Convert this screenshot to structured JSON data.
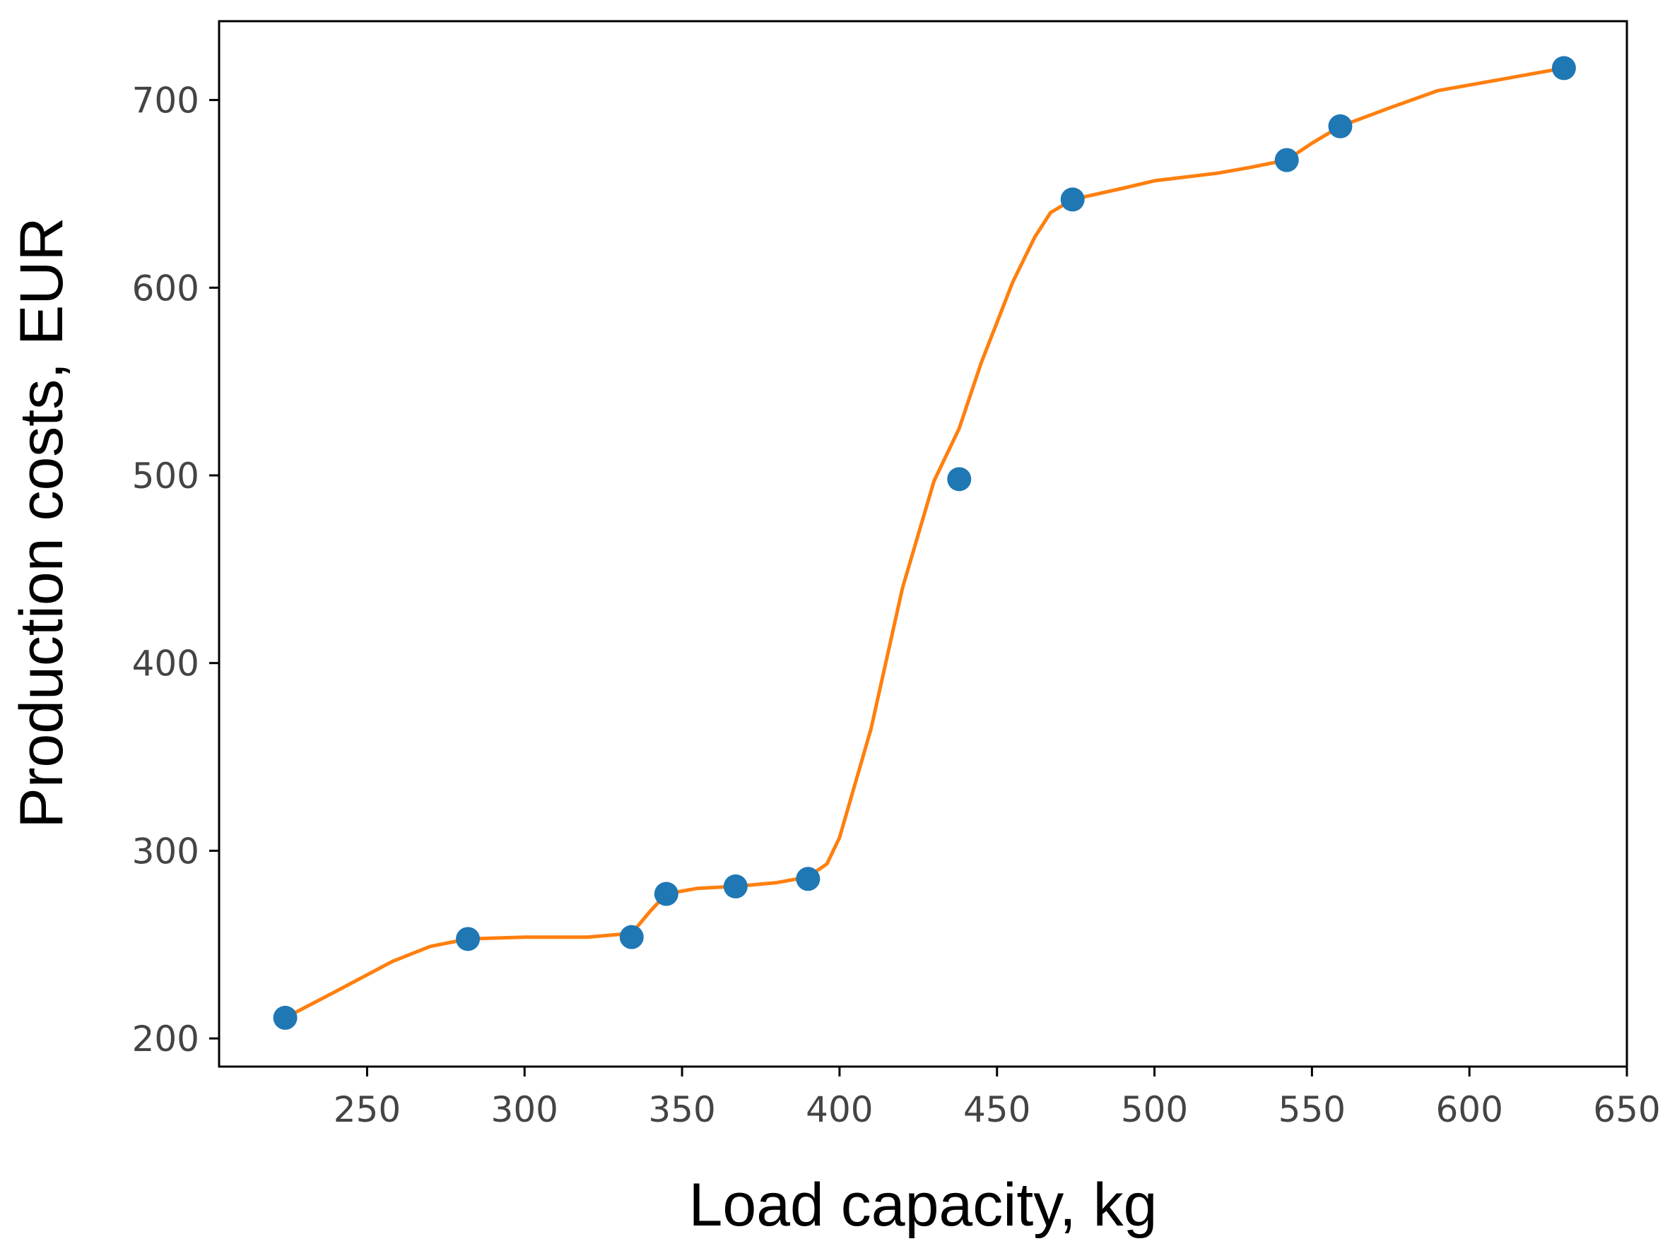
{
  "chart_data": {
    "type": "scatter",
    "title": "",
    "xlabel": "Load capacity, kg",
    "ylabel": "Production costs, EUR",
    "xlim": [
      203,
      650
    ],
    "ylim": [
      185,
      742
    ],
    "xticks": [
      250,
      300,
      350,
      400,
      450,
      500,
      550,
      600,
      650
    ],
    "yticks": [
      200,
      300,
      400,
      500,
      600,
      700
    ],
    "grid": false,
    "legend": "none",
    "series": [
      {
        "kind": "points",
        "color": "#1f77b4",
        "x": [
          224,
          282,
          334,
          345,
          367,
          390,
          438,
          474,
          542,
          559,
          630
        ],
        "y": [
          211,
          253,
          254,
          277,
          281,
          285,
          498,
          647,
          668,
          686,
          717
        ]
      },
      {
        "kind": "fitted-curve",
        "color": "#ff7f0e",
        "x": [
          224,
          240,
          258,
          270,
          282,
          300,
          320,
          334,
          340,
          345,
          355,
          367,
          380,
          390,
          396,
          400,
          410,
          420,
          430,
          438,
          445,
          455,
          462,
          467,
          474,
          490,
          500,
          520,
          530,
          542,
          550,
          559,
          575,
          590,
          610,
          630
        ],
        "y": [
          211,
          225,
          241,
          249,
          253,
          254,
          254,
          256,
          268,
          277,
          280,
          281,
          283,
          286,
          293,
          307,
          365,
          440,
          497,
          525,
          560,
          603,
          627,
          640,
          647,
          653,
          657,
          661,
          664,
          668,
          677,
          686,
          696,
          705,
          711,
          717
        ]
      }
    ]
  }
}
